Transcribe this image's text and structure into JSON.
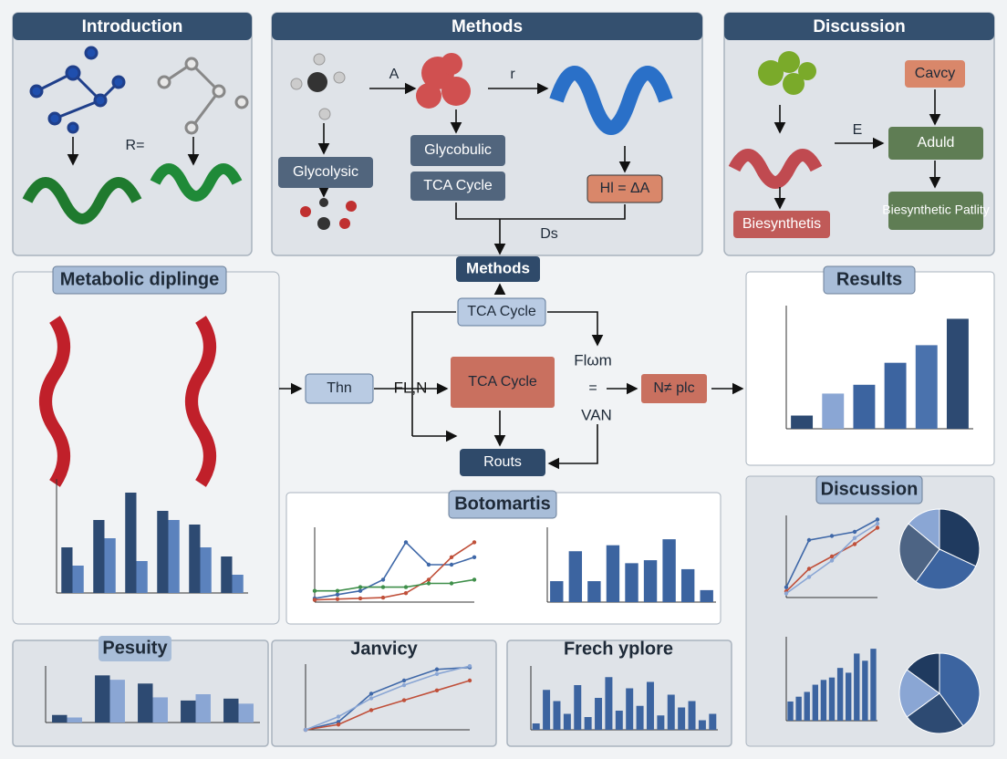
{
  "introduction": {
    "title": "Introduction",
    "label": "R="
  },
  "methods_top": {
    "title": "Methods",
    "arrow_labels": [
      "A",
      "r"
    ],
    "boxes": [
      "Glycolysic",
      "Glycobulic",
      "TCA Cycle",
      "Hl = ΔA"
    ],
    "note": "Ds"
  },
  "discussion_top": {
    "title": "Discussion",
    "arrow_label": "E",
    "boxes": [
      "Cavcy",
      "Aduld",
      "Biesynthetic Patlity",
      "Biesynthetis"
    ]
  },
  "center_flow": {
    "title": "Methods",
    "boxes": [
      "TCA Cycle",
      "Thn",
      "TCA Cycle",
      "N≠ plc",
      "Routs"
    ],
    "labels": [
      "FL,N",
      "Flωm",
      "=",
      "VAN"
    ]
  },
  "metabolic": {
    "title": "Metabolic diplinge",
    "chart": {
      "type": "bar",
      "ylim": [
        0,
        2500
      ],
      "series": [
        {
          "color": "#2d4a72",
          "values": [
            1000,
            1600,
            2200,
            1800,
            1500,
            800
          ]
        },
        {
          "color": "#5b82bd",
          "values": [
            600,
            1200,
            700,
            1600,
            1000,
            400
          ]
        }
      ]
    }
  },
  "results": {
    "title": "Results",
    "chart": {
      "type": "bar",
      "ylim": [
        0,
        140
      ],
      "series": [
        {
          "colors": [
            "#2d4a72",
            "#8aa6d4",
            "#3c64a0",
            "#3c64a0",
            "#4a72ad",
            "#2d4a72"
          ],
          "values": [
            15,
            40,
            50,
            75,
            95,
            125
          ]
        }
      ]
    }
  },
  "botomartis": {
    "title": "Botomartis",
    "line_chart": {
      "type": "line",
      "ylim": [
        0,
        10
      ],
      "series": [
        {
          "color": "#3f68a8",
          "values": [
            0.5,
            1,
            1.5,
            3,
            8,
            5,
            5,
            6
          ]
        },
        {
          "color": "#c0503a",
          "values": [
            0.3,
            0.4,
            0.5,
            0.6,
            1.2,
            3,
            6,
            8
          ]
        },
        {
          "color": "#3f8f4a",
          "values": [
            1.5,
            1.5,
            2,
            2,
            2,
            2.5,
            2.5,
            3
          ]
        }
      ]
    },
    "bar_chart": {
      "type": "bar",
      "ylim": [
        0,
        25
      ],
      "series": [
        {
          "color": "#3c64a0",
          "values": [
            7,
            17,
            7,
            19,
            13,
            14,
            21,
            11,
            4
          ]
        }
      ]
    }
  },
  "discussion_right": {
    "title": "Discussion",
    "line_chart": {
      "type": "line",
      "ylim": [
        0,
        40
      ],
      "series": [
        {
          "color": "#3f68a8",
          "values": [
            5,
            28,
            30,
            32,
            38
          ]
        },
        {
          "color": "#c0503a",
          "values": [
            3,
            14,
            20,
            26,
            34
          ]
        },
        {
          "color": "#8aa6d4",
          "values": [
            2,
            10,
            18,
            29,
            36
          ]
        }
      ]
    },
    "bar_chart": {
      "type": "bar",
      "ylim": [
        0,
        35
      ],
      "series": [
        {
          "color": "#3c64a0",
          "values": [
            8,
            10,
            12,
            15,
            17,
            18,
            22,
            20,
            28,
            25,
            30
          ]
        }
      ]
    },
    "pie_top": {
      "type": "pie",
      "colors": [
        "#1f3a5f",
        "#3c64a0",
        "#4d6484",
        "#8aa6d4"
      ],
      "values": [
        32,
        28,
        26,
        14
      ]
    },
    "pie_bottom": {
      "type": "pie",
      "colors": [
        "#3c64a0",
        "#2d4a72",
        "#8aa6d4",
        "#1f3a5f"
      ],
      "values": [
        40,
        25,
        20,
        15
      ]
    }
  },
  "pesuity": {
    "title": "Pesuity",
    "chart": {
      "type": "bar",
      "ylim": [
        0,
        90
      ],
      "series": [
        {
          "color": "#2d4a72",
          "values": [
            12,
            75,
            62,
            35,
            38
          ]
        },
        {
          "color": "#8aa6d4",
          "values": [
            8,
            68,
            40,
            45,
            30
          ]
        }
      ]
    }
  },
  "janvicy": {
    "title": "Janvicy",
    "chart": {
      "type": "line",
      "ylim": [
        0,
        100
      ],
      "series": [
        {
          "color": "#3f68a8",
          "values": [
            0,
            12,
            55,
            75,
            92,
            95
          ]
        },
        {
          "color": "#c0503a",
          "values": [
            0,
            8,
            30,
            45,
            60,
            75
          ]
        },
        {
          "color": "#8aa6d4",
          "values": [
            0,
            20,
            48,
            68,
            85,
            97
          ]
        }
      ]
    }
  },
  "frech": {
    "title": "Frech yplore",
    "chart": {
      "type": "bar",
      "ylim": [
        0,
        40
      ],
      "series": [
        {
          "color": "#3c64a0",
          "values": [
            4,
            25,
            18,
            10,
            28,
            8,
            20,
            33,
            12,
            26,
            15,
            30,
            9,
            22,
            14,
            18,
            6,
            10
          ]
        }
      ]
    }
  }
}
